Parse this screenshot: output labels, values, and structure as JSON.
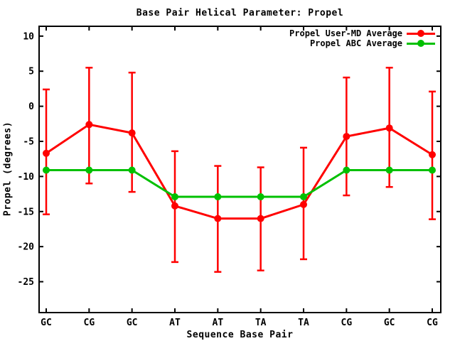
{
  "chart_data": {
    "type": "line",
    "title": "Base Pair Helical Parameter: Propel",
    "xlabel": "Sequence Base Pair",
    "ylabel": "Propel (degrees)",
    "categories": [
      "GC",
      "CG",
      "GC",
      "AT",
      "AT",
      "TA",
      "TA",
      "CG",
      "GC",
      "CG"
    ],
    "yticks": [
      10,
      5,
      0,
      -5,
      -10,
      -15,
      -20,
      -25
    ],
    "ylim": [
      -29.4,
      11.4
    ],
    "grid": false,
    "legend_position": "top-right-inside",
    "background": "#ffffff",
    "text_color": "#000000",
    "series": [
      {
        "name": "Propel User-MD Average",
        "color": "#ff0000",
        "marker": "filled-circle",
        "values": [
          -6.7,
          -2.6,
          -3.8,
          -14.2,
          -16.0,
          -16.0,
          -14.0,
          -4.3,
          -3.1,
          -6.9
        ],
        "error_top": [
          2.4,
          5.5,
          4.8,
          -6.4,
          -8.5,
          -8.7,
          -5.9,
          4.1,
          5.5,
          2.1
        ],
        "error_bottom": [
          -15.4,
          -11.0,
          -12.2,
          -22.2,
          -23.6,
          -23.4,
          -21.8,
          -12.7,
          -11.5,
          -16.1
        ]
      },
      {
        "name": "Propel ABC Average",
        "color": "#00c000",
        "marker": "filled-circle",
        "values": [
          -9.1,
          -9.1,
          -9.1,
          -12.9,
          -12.9,
          -12.9,
          -12.9,
          -9.1,
          -9.1,
          -9.1
        ]
      }
    ]
  }
}
